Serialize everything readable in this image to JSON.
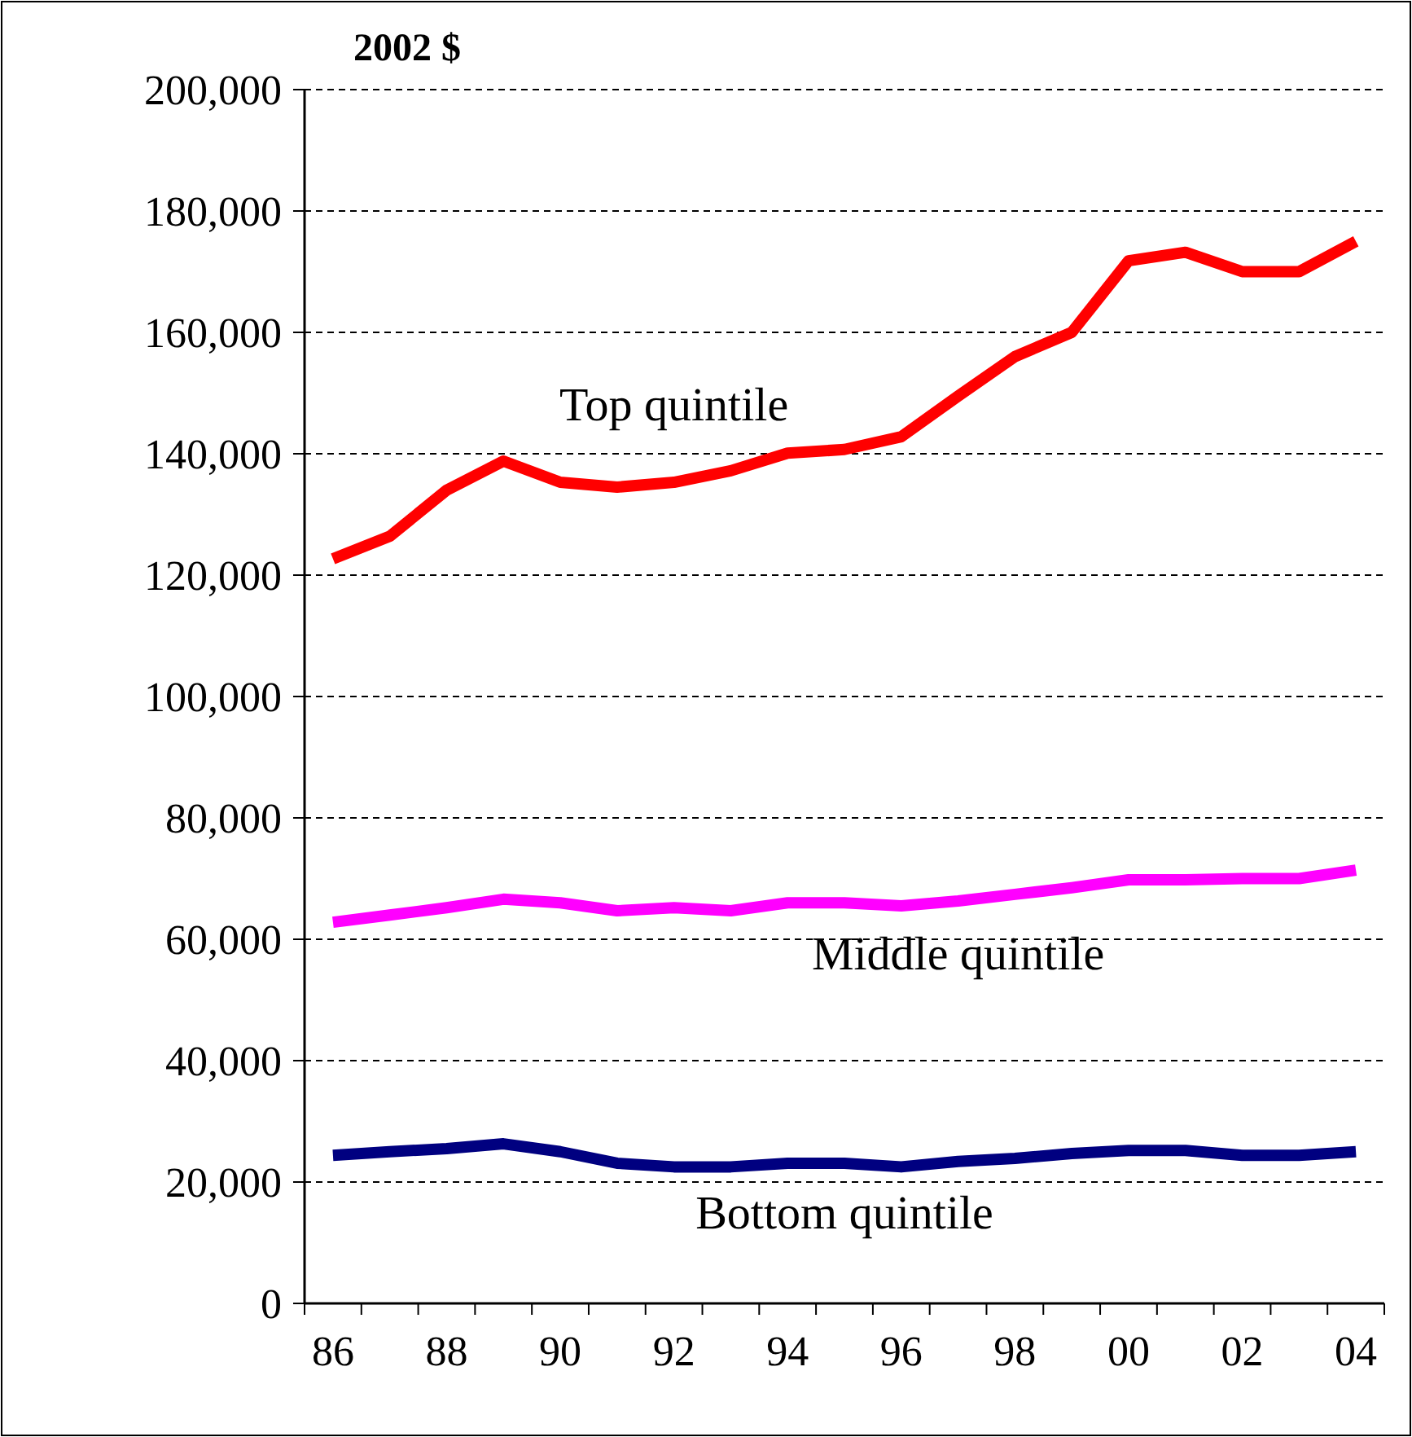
{
  "chart_data": {
    "type": "line",
    "ylabel": "2002 $",
    "categories": [
      "86",
      null,
      "88",
      null,
      "90",
      null,
      "92",
      null,
      "94",
      null,
      "96",
      null,
      "98",
      null,
      "00",
      null,
      "02",
      null,
      "04"
    ],
    "series": [
      {
        "name": "Top quintile",
        "color": "#ff0000",
        "values": [
          122700,
          126400,
          134000,
          138800,
          135300,
          134500,
          135300,
          137200,
          140100,
          140700,
          142800,
          149500,
          156000,
          160000,
          171800,
          173200,
          170000,
          170000,
          175000
        ]
      },
      {
        "name": "Middle quintile",
        "color": "#ff00ff",
        "values": [
          62800,
          64000,
          65200,
          66600,
          66000,
          64700,
          65200,
          64700,
          66000,
          66000,
          65500,
          66300,
          67400,
          68500,
          69800,
          69800,
          70000,
          70000,
          71400
        ]
      },
      {
        "name": "Bottom quintile",
        "color": "#000080",
        "values": [
          24400,
          25000,
          25500,
          26300,
          25000,
          23100,
          22500,
          22500,
          23100,
          23100,
          22500,
          23400,
          23900,
          24700,
          25200,
          25200,
          24400,
          24400,
          25000
        ]
      }
    ],
    "ylim": [
      0,
      200000
    ],
    "yticks": [
      {
        "value": 0,
        "label": "0"
      },
      {
        "value": 20000,
        "label": "20,000"
      },
      {
        "value": 40000,
        "label": "40,000"
      },
      {
        "value": 60000,
        "label": "60,000"
      },
      {
        "value": 80000,
        "label": "80,000"
      },
      {
        "value": 100000,
        "label": "100,000"
      },
      {
        "value": 120000,
        "label": "120,000"
      },
      {
        "value": 140000,
        "label": "140,000"
      },
      {
        "value": 160000,
        "label": "160,000"
      },
      {
        "value": 180000,
        "label": "180,000"
      },
      {
        "value": 200000,
        "label": "200,000"
      }
    ],
    "grid": "y",
    "marker": "none",
    "line_style": "solid"
  }
}
